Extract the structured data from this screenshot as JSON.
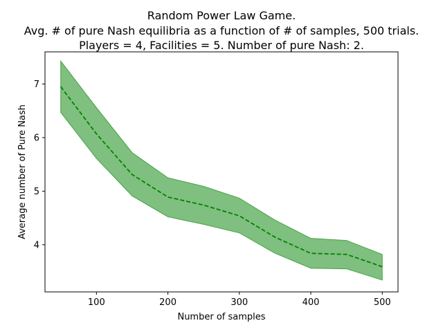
{
  "chart_data": {
    "type": "line",
    "title": [
      "Random Power Law Game.",
      "Avg. # of pure Nash equilibria as a function of # of samples, 500 trials.",
      "Players = 4, Facilities = 5. Number of pure Nash: 2."
    ],
    "xlabel": "Number of samples",
    "ylabel": "Average number of Pure Nash",
    "xlim": [
      28,
      522
    ],
    "ylim": [
      3.12,
      7.6
    ],
    "x_ticks": [
      100,
      200,
      300,
      400,
      500
    ],
    "y_ticks": [
      4,
      5,
      6,
      7
    ],
    "grid": false,
    "legend": "none",
    "series": [
      {
        "style": "dashed",
        "color": "#008000",
        "x": [
          50,
          100,
          150,
          200,
          250,
          300,
          350,
          400,
          450,
          500
        ],
        "values": [
          6.95,
          6.07,
          5.31,
          4.89,
          4.74,
          4.54,
          4.14,
          3.84,
          3.82,
          3.59
        ]
      }
    ],
    "band": {
      "color": "#008000",
      "opacity": 0.5,
      "x": [
        50,
        100,
        150,
        200,
        250,
        300,
        350,
        400,
        450,
        500
      ],
      "upper": [
        7.43,
        6.56,
        5.72,
        5.25,
        5.09,
        4.87,
        4.46,
        4.12,
        4.08,
        3.82
      ],
      "lower": [
        6.47,
        5.61,
        4.91,
        4.52,
        4.38,
        4.22,
        3.84,
        3.56,
        3.55,
        3.34
      ]
    }
  }
}
